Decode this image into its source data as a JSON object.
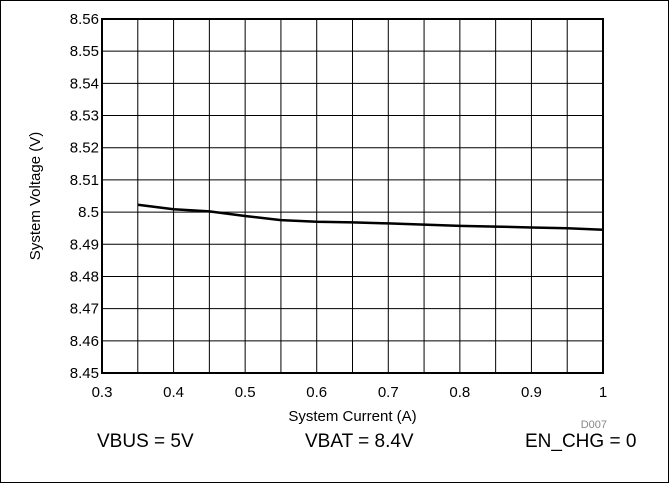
{
  "chart_data": {
    "type": "line",
    "xlabel": "System Current (A)",
    "ylabel": "System Voltage (V)",
    "xlim": [
      0.3,
      1.0
    ],
    "ylim": [
      8.45,
      8.56
    ],
    "x_ticks": [
      0.3,
      0.35,
      0.4,
      0.45,
      0.5,
      0.55,
      0.6,
      0.65,
      0.7,
      0.75,
      0.8,
      0.85,
      0.9,
      0.95,
      1.0
    ],
    "x_tick_labels": [
      "0.3",
      "0.4",
      "0.5",
      "0.6",
      "0.7",
      "0.8",
      "0.9",
      "1"
    ],
    "y_ticks": [
      8.45,
      8.46,
      8.47,
      8.48,
      8.49,
      8.5,
      8.51,
      8.52,
      8.53,
      8.54,
      8.55,
      8.56
    ],
    "y_tick_labels": [
      "8.45",
      "8.46",
      "8.47",
      "8.48",
      "8.49",
      "8.5",
      "8.51",
      "8.52",
      "8.53",
      "8.54",
      "8.55",
      "8.56"
    ],
    "grid": true,
    "series": [
      {
        "x": [
          0.35,
          0.4,
          0.45,
          0.5,
          0.55,
          0.6,
          0.65,
          0.7,
          0.75,
          0.8,
          0.85,
          0.9,
          0.95,
          1.0
        ],
        "y": [
          8.5023,
          8.5009,
          8.5002,
          8.4988,
          8.4975,
          8.497,
          8.4968,
          8.4965,
          8.4961,
          8.4957,
          8.4955,
          8.4952,
          8.495,
          8.4945
        ],
        "color": "#000000"
      }
    ],
    "figure_id": "D007"
  },
  "conditions": {
    "vbus": "VBUS = 5V",
    "vbat": "VBAT = 8.4V",
    "en_chg": "EN_CHG = 0"
  }
}
